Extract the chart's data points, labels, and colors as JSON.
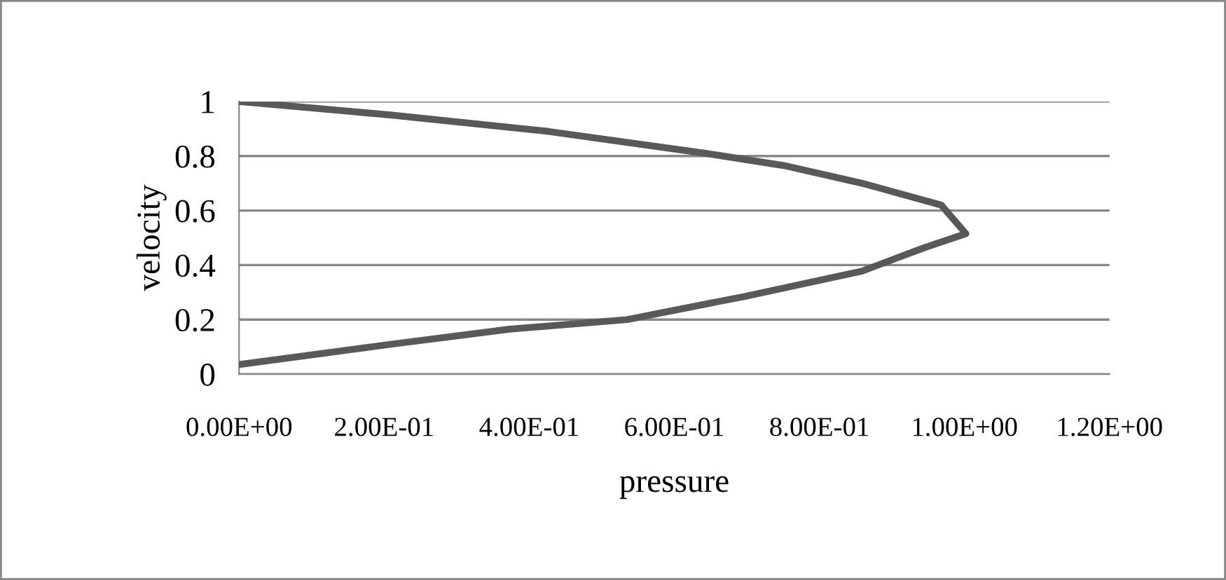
{
  "chart_data": {
    "type": "line",
    "xlabel": "pressure",
    "ylabel": "velocity",
    "series": [
      {
        "color": "#595959",
        "x": [
          0,
          0.211,
          0.373,
          0.535,
          0.697,
          0.859,
          0.946,
          1.002,
          0.968,
          0.859,
          0.751,
          0.643,
          0.427,
          0.211,
          0
        ],
        "values": [
          0.035,
          0.11,
          0.165,
          0.2,
          0.285,
          0.378,
          0.465,
          0.515,
          0.62,
          0.7,
          0.765,
          0.81,
          0.89,
          0.95,
          1
        ]
      }
    ],
    "xlim": [
      0,
      1.2
    ],
    "xticks": [
      {
        "value": 0,
        "label": "0.00E+00"
      },
      {
        "value": 0.2,
        "label": "2.00E-01"
      },
      {
        "value": 0.4,
        "label": "4.00E-01"
      },
      {
        "value": 0.6,
        "label": "6.00E-01"
      },
      {
        "value": 0.8,
        "label": "8.00E-01"
      },
      {
        "value": 1,
        "label": "1.00E+00"
      },
      {
        "value": 1.2,
        "label": "1.20E+00"
      }
    ],
    "ylim": [
      0,
      1
    ],
    "yticks": [
      0,
      0.2,
      0.4,
      0.6,
      0.8,
      1
    ],
    "grid": "y",
    "marker": "none",
    "line_style": "solid"
  }
}
